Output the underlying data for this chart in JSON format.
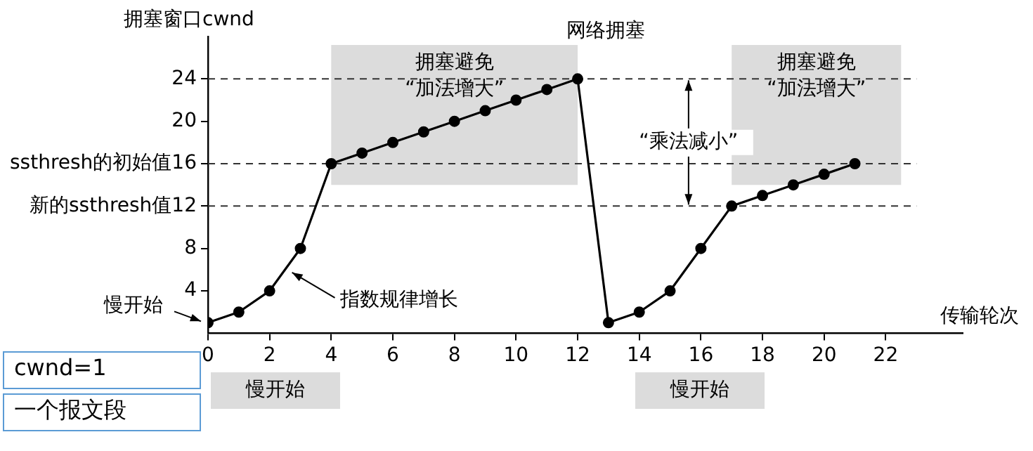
{
  "chart_data": {
    "type": "line",
    "xlabel": "传输轮次",
    "ylabel": "拥塞窗口cwnd",
    "x": [
      0,
      1,
      2,
      3,
      4,
      5,
      6,
      7,
      8,
      9,
      10,
      11,
      12,
      13,
      14,
      15,
      16,
      17,
      18,
      19,
      20,
      21
    ],
    "series": [
      {
        "color": "#000000",
        "values": [
          1,
          2,
          4,
          8,
          16,
          17,
          18,
          19,
          20,
          21,
          22,
          23,
          24,
          1,
          2,
          4,
          8,
          12,
          13,
          14,
          15,
          16
        ]
      }
    ],
    "xlim": [
      0,
      24.5
    ],
    "ylim": [
      0,
      28
    ],
    "xticks": [
      0,
      2,
      4,
      6,
      8,
      10,
      12,
      14,
      16,
      18,
      20,
      22
    ],
    "yticks": [
      4,
      8,
      {
        "value": 12,
        "label": "新的ssthresh值12"
      },
      {
        "value": 16,
        "label": "ssthresh的初始值16"
      },
      20,
      24
    ],
    "ref_lines": [
      {
        "axis": "y",
        "value": 24
      },
      {
        "axis": "y",
        "value": 16
      },
      {
        "axis": "y",
        "value": 12
      }
    ],
    "bands": [
      {
        "axis": "x",
        "from": 4,
        "to": 12,
        "label": "拥塞避免\n“加法增大”",
        "color": "#dcdcdc"
      },
      {
        "axis": "x",
        "from": 17,
        "to": 22.5,
        "label": "拥塞避免\n“加法增大”",
        "color": "#dcdcdc"
      }
    ],
    "annotations": [
      {
        "text": "慢开始",
        "x": 0,
        "y": 1
      },
      {
        "text": "指数规律增长",
        "x": 2.5,
        "y": 6
      },
      {
        "text": "网络拥塞",
        "x": 12,
        "y": 24
      },
      {
        "text": "“乘法减小”",
        "x": 15.6,
        "y": 24
      },
      "慢开始",
      "慢开始",
      "cwnd=1",
      "一个报文段"
    ],
    "grid": false,
    "legend": false,
    "marker": "circle",
    "line_style": "solid"
  }
}
